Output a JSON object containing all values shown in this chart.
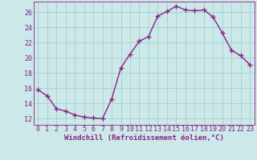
{
  "x": [
    0,
    1,
    2,
    3,
    4,
    5,
    6,
    7,
    8,
    9,
    10,
    11,
    12,
    13,
    14,
    15,
    16,
    17,
    18,
    19,
    20,
    21,
    22,
    23
  ],
  "y": [
    15.8,
    15.0,
    13.3,
    13.0,
    12.5,
    12.2,
    12.1,
    12.0,
    14.6,
    18.7,
    20.5,
    22.2,
    22.8,
    25.5,
    26.1,
    26.8,
    26.3,
    26.2,
    26.3,
    25.4,
    23.3,
    21.0,
    20.3,
    19.1
  ],
  "line_color": "#882288",
  "marker": "+",
  "markersize": 4,
  "linewidth": 1.0,
  "xlabel": "Windchill (Refroidissement éolien,°C)",
  "xlabel_fontsize": 6.5,
  "ylabel_ticks": [
    12,
    14,
    16,
    18,
    20,
    22,
    24,
    26
  ],
  "xtick_labels": [
    "0",
    "1",
    "2",
    "3",
    "4",
    "5",
    "6",
    "7",
    "8",
    "9",
    "10",
    "11",
    "12",
    "13",
    "14",
    "15",
    "16",
    "17",
    "18",
    "19",
    "20",
    "21",
    "22",
    "23"
  ],
  "ylim": [
    11.2,
    27.4
  ],
  "xlim": [
    -0.5,
    23.5
  ],
  "bg_color": "#cce8e8",
  "grid_color": "#99cccc",
  "tick_fontsize": 6.0
}
